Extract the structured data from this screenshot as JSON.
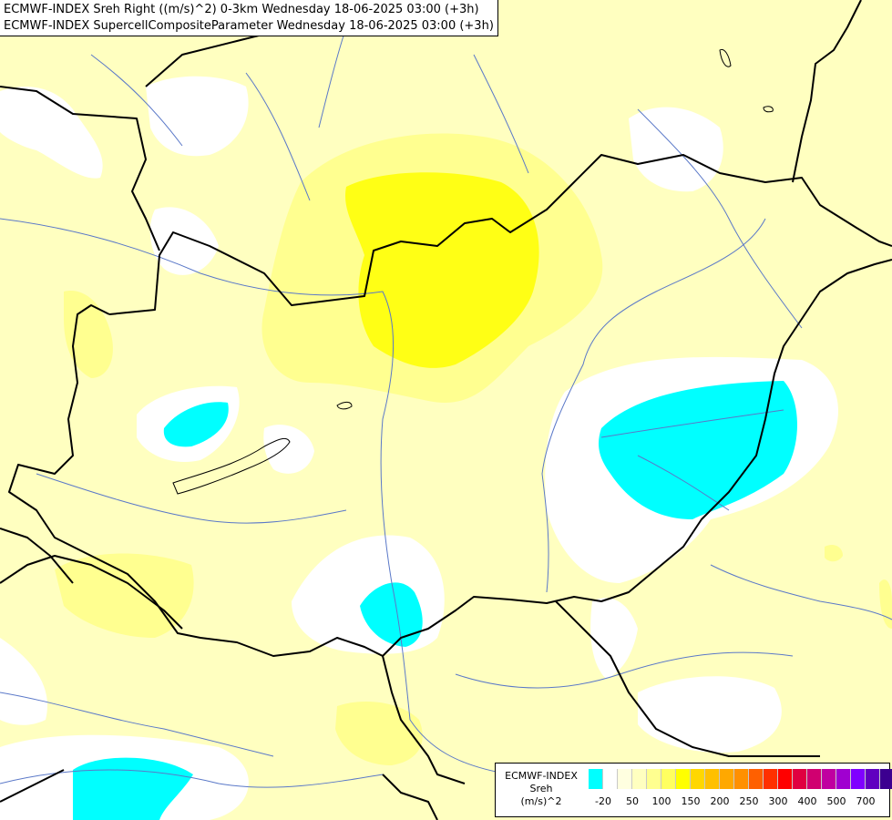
{
  "header": {
    "title_line_1": "ECMWF-INDEX Sreh Right ((m/s)^2) 0-3km Wednesday 18-06-2025 03:00 (+3h)",
    "title_line_2": "ECMWF-INDEX SupercellCompositeParameter Wednesday 18-06-2025 03:00 (+3h)"
  },
  "colors": {
    "background_field": "#ffffc0",
    "zero_field": "#ffffff",
    "low_negative_field": "#00ffff",
    "light_yellow": "#ffff90",
    "yellow": "#ffff00",
    "border_line": "#000000",
    "river_line": "#5a78c8"
  },
  "legend": {
    "line_1": "ECMWF-INDEX",
    "line_2": "Sreh",
    "line_3": "(m/s)^2",
    "swatches": [
      "#00ffff",
      "#ffffff",
      "#ffffe0",
      "#ffffc0",
      "#ffff90",
      "#ffff60",
      "#ffff00",
      "#ffd700",
      "#ffc000",
      "#ffa800",
      "#ff9000",
      "#ff6000",
      "#ff3000",
      "#ff0000",
      "#e00040",
      "#d00070",
      "#c000a0",
      "#a000d0",
      "#8000ff",
      "#6000c0",
      "#3c0090",
      "#1e0060"
    ],
    "ticks": [
      "-20",
      "50",
      "100",
      "150",
      "200",
      "250",
      "300",
      "400",
      "500",
      "700"
    ]
  }
}
